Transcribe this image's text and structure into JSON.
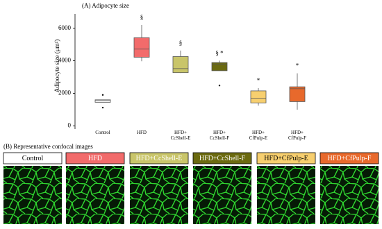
{
  "chart_data": {
    "type": "box",
    "title": "(A) Adipocyte size",
    "y_label": "Adipocyte size (μm²)",
    "categories": [
      "Control",
      "HFD",
      "HFD+\nCcShell-E",
      "HFD+\nCcShell-F",
      "HFD+\nCfPulp-E",
      "HFD+\nCfPulp-F"
    ],
    "boxes": [
      {
        "min": 1450,
        "q1": 1450,
        "median": 1550,
        "q3": 1600,
        "max": 1600,
        "outliers": [
          1900,
          1120
        ],
        "color": "#ffffff"
      },
      {
        "min": 3970,
        "q1": 4220,
        "median": 4720,
        "q3": 5420,
        "max": 6200,
        "outliers": [],
        "color": "#f26b6b",
        "annotation": "§"
      },
      {
        "min": 3250,
        "q1": 3270,
        "median": 3520,
        "q3": 4260,
        "max": 4630,
        "outliers": [],
        "color": "#c9c56a",
        "annotation": "§"
      },
      {
        "min": 3390,
        "q1": 3390,
        "median": 3800,
        "q3": 3890,
        "max": 4010,
        "outliers": [
          2480
        ],
        "color": "#6b6a10",
        "annotation": "§ *"
      },
      {
        "min": 1240,
        "q1": 1410,
        "median": 1700,
        "q3": 2150,
        "max": 2320,
        "outliers": [],
        "color": "#f7cf6f",
        "annotation": "*"
      },
      {
        "min": 990,
        "q1": 1490,
        "median": 2280,
        "q3": 2400,
        "max": 3230,
        "outliers": [],
        "color": "#e8692c",
        "annotation": "*"
      }
    ],
    "ylim": [
      -200,
      6800
    ],
    "yticks": [
      0,
      2000,
      4000,
      6000
    ]
  },
  "panel_b": {
    "title": "(B) Representative confocal images",
    "panels": [
      {
        "label": "Control",
        "color": "#ffffff",
        "text_color": "#000000"
      },
      {
        "label": "HFD",
        "color": "#f26b6b",
        "text_color": "#ffffff"
      },
      {
        "label": "HFD+CcShell-E",
        "color": "#c9c56a",
        "text_color": "#ffffff"
      },
      {
        "label": "HFD+CcShell-F",
        "color": "#6b6a10",
        "text_color": "#ffffff"
      },
      {
        "label": "HFD+CfPulp-E",
        "color": "#f7cf6f",
        "text_color": "#000000"
      },
      {
        "label": "HFD+CfPulp-F",
        "color": "#e8692c",
        "text_color": "#ffffff"
      }
    ]
  }
}
